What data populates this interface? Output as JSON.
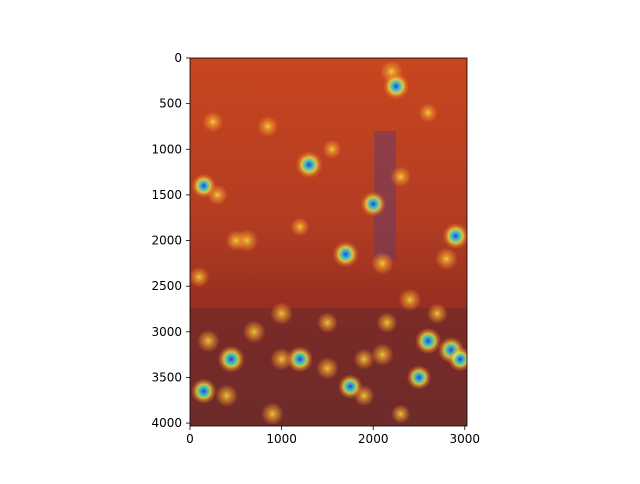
{
  "chart_data": {
    "type": "heatmap",
    "title": "",
    "xlabel": "",
    "ylabel": "",
    "xlim": [
      0,
      3024
    ],
    "ylim": [
      4032,
      0
    ],
    "x_ticks": [
      0,
      1000,
      2000,
      3000
    ],
    "y_ticks": [
      0,
      500,
      1000,
      1500,
      2000,
      2500,
      3000,
      3500,
      4000
    ],
    "image_description_hidden": true,
    "colormap": "jet",
    "overlay_base_color": "#c8461f",
    "hotspots": [
      {
        "x": 150,
        "y": 1400,
        "v": 0.8
      },
      {
        "x": 300,
        "y": 1500,
        "v": 0.6
      },
      {
        "x": 850,
        "y": 750,
        "v": 0.6
      },
      {
        "x": 1300,
        "y": 1170,
        "v": 0.95
      },
      {
        "x": 2200,
        "y": 150,
        "v": 0.7
      },
      {
        "x": 2250,
        "y": 310,
        "v": 0.9
      },
      {
        "x": 2000,
        "y": 1600,
        "v": 0.85
      },
      {
        "x": 2100,
        "y": 2250,
        "v": 0.7
      },
      {
        "x": 620,
        "y": 2000,
        "v": 0.7
      },
      {
        "x": 500,
        "y": 2000,
        "v": 0.6
      },
      {
        "x": 1200,
        "y": 1850,
        "v": 0.5
      },
      {
        "x": 1700,
        "y": 2150,
        "v": 0.9
      },
      {
        "x": 2800,
        "y": 2200,
        "v": 0.7
      },
      {
        "x": 2900,
        "y": 1950,
        "v": 0.9
      },
      {
        "x": 2400,
        "y": 2650,
        "v": 0.7
      },
      {
        "x": 2700,
        "y": 2800,
        "v": 0.6
      },
      {
        "x": 2600,
        "y": 3100,
        "v": 0.9
      },
      {
        "x": 2850,
        "y": 3200,
        "v": 0.9
      },
      {
        "x": 2950,
        "y": 3300,
        "v": 0.8
      },
      {
        "x": 2500,
        "y": 3500,
        "v": 0.8
      },
      {
        "x": 2100,
        "y": 3250,
        "v": 0.7
      },
      {
        "x": 1750,
        "y": 3600,
        "v": 0.8
      },
      {
        "x": 1500,
        "y": 3400,
        "v": 0.7
      },
      {
        "x": 1200,
        "y": 3300,
        "v": 0.9
      },
      {
        "x": 1000,
        "y": 3300,
        "v": 0.7
      },
      {
        "x": 700,
        "y": 3000,
        "v": 0.7
      },
      {
        "x": 450,
        "y": 3300,
        "v": 0.95
      },
      {
        "x": 200,
        "y": 3100,
        "v": 0.7
      },
      {
        "x": 150,
        "y": 3650,
        "v": 0.85
      },
      {
        "x": 400,
        "y": 3700,
        "v": 0.7
      },
      {
        "x": 900,
        "y": 3900,
        "v": 0.7
      },
      {
        "x": 1900,
        "y": 3300,
        "v": 0.6
      },
      {
        "x": 1900,
        "y": 3700,
        "v": 0.6
      },
      {
        "x": 2300,
        "y": 3900,
        "v": 0.5
      },
      {
        "x": 100,
        "y": 2400,
        "v": 0.6
      },
      {
        "x": 2300,
        "y": 1300,
        "v": 0.6
      },
      {
        "x": 250,
        "y": 700,
        "v": 0.6
      },
      {
        "x": 1550,
        "y": 1000,
        "v": 0.5
      },
      {
        "x": 2600,
        "y": 600,
        "v": 0.5
      },
      {
        "x": 1000,
        "y": 2800,
        "v": 0.7
      },
      {
        "x": 1500,
        "y": 2900,
        "v": 0.6
      },
      {
        "x": 2150,
        "y": 2900,
        "v": 0.6
      }
    ]
  }
}
